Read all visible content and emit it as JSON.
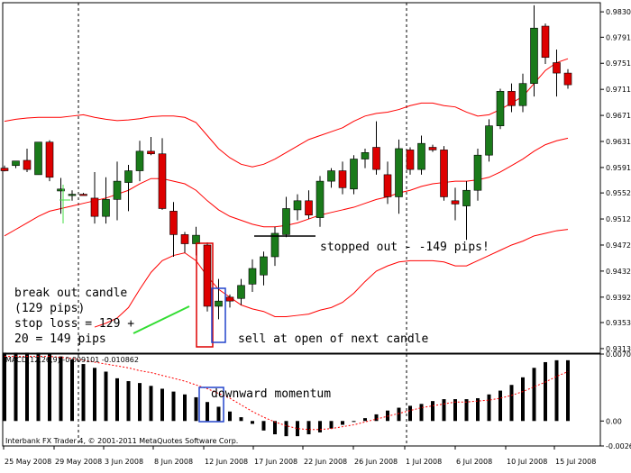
{
  "chart_data": [
    {
      "type": "candlestick",
      "yticks": [
        0.9313,
        0.9353,
        0.9392,
        0.9432,
        0.9472,
        0.9512,
        0.9552,
        0.9591,
        0.9631,
        0.9671,
        0.9711,
        0.9751,
        0.9791,
        0.983
      ],
      "ytick_labels": [
        "0.93130",
        "0.93530",
        "0.93920",
        "0.94320",
        "0.94720",
        "0.95120",
        "0.95520",
        "0.95910",
        "0.96310",
        "0.96710",
        "0.97110",
        "0.97510",
        "0.97910",
        "0.98300"
      ],
      "ylim": [
        0.9306,
        0.9844
      ],
      "candles": [
        {
          "o": 0.959,
          "h": 0.9594,
          "l": 0.9585,
          "c": 0.9586
        },
        {
          "o": 0.9594,
          "h": 0.9601,
          "l": 0.959,
          "c": 0.9601
        },
        {
          "o": 0.9602,
          "h": 0.962,
          "l": 0.9584,
          "c": 0.9588
        },
        {
          "o": 0.958,
          "h": 0.963,
          "l": 0.958,
          "c": 0.963
        },
        {
          "o": 0.963,
          "h": 0.9633,
          "l": 0.957,
          "c": 0.9576
        },
        {
          "o": 0.9555,
          "h": 0.9575,
          "l": 0.952,
          "c": 0.9558
        },
        {
          "o": 0.9549,
          "h": 0.9556,
          "l": 0.954,
          "c": 0.955
        },
        {
          "o": 0.955,
          "h": 0.9552,
          "l": 0.9548,
          "c": 0.9548
        },
        {
          "o": 0.9544,
          "h": 0.9584,
          "l": 0.9505,
          "c": 0.9516
        },
        {
          "o": 0.9516,
          "h": 0.9576,
          "l": 0.9505,
          "c": 0.9542
        },
        {
          "o": 0.9542,
          "h": 0.96,
          "l": 0.951,
          "c": 0.957
        },
        {
          "o": 0.9568,
          "h": 0.9595,
          "l": 0.9524,
          "c": 0.9586
        },
        {
          "o": 0.9586,
          "h": 0.9632,
          "l": 0.957,
          "c": 0.9616
        },
        {
          "o": 0.9616,
          "h": 0.9638,
          "l": 0.961,
          "c": 0.9612
        },
        {
          "o": 0.9612,
          "h": 0.9636,
          "l": 0.9526,
          "c": 0.9528
        },
        {
          "o": 0.9524,
          "h": 0.9538,
          "l": 0.9454,
          "c": 0.9488
        },
        {
          "o": 0.9488,
          "h": 0.9492,
          "l": 0.946,
          "c": 0.9474
        },
        {
          "o": 0.9474,
          "h": 0.95,
          "l": 0.9456,
          "c": 0.9487
        },
        {
          "o": 0.9472,
          "h": 0.9476,
          "l": 0.937,
          "c": 0.9378
        },
        {
          "o": 0.9378,
          "h": 0.942,
          "l": 0.9358,
          "c": 0.9386
        },
        {
          "o": 0.9392,
          "h": 0.9396,
          "l": 0.9376,
          "c": 0.9386
        },
        {
          "o": 0.939,
          "h": 0.942,
          "l": 0.938,
          "c": 0.941
        },
        {
          "o": 0.9412,
          "h": 0.945,
          "l": 0.94,
          "c": 0.9436
        },
        {
          "o": 0.9426,
          "h": 0.9462,
          "l": 0.941,
          "c": 0.9454
        },
        {
          "o": 0.9454,
          "h": 0.95,
          "l": 0.944,
          "c": 0.949
        },
        {
          "o": 0.9488,
          "h": 0.9546,
          "l": 0.9484,
          "c": 0.9528
        },
        {
          "o": 0.9526,
          "h": 0.955,
          "l": 0.951,
          "c": 0.954
        },
        {
          "o": 0.954,
          "h": 0.9556,
          "l": 0.9512,
          "c": 0.9518
        },
        {
          "o": 0.9514,
          "h": 0.9578,
          "l": 0.95,
          "c": 0.957
        },
        {
          "o": 0.957,
          "h": 0.959,
          "l": 0.956,
          "c": 0.9586
        },
        {
          "o": 0.9586,
          "h": 0.96,
          "l": 0.955,
          "c": 0.956
        },
        {
          "o": 0.9558,
          "h": 0.961,
          "l": 0.955,
          "c": 0.9604
        },
        {
          "o": 0.9604,
          "h": 0.962,
          "l": 0.959,
          "c": 0.9614
        },
        {
          "o": 0.9622,
          "h": 0.9662,
          "l": 0.958,
          "c": 0.9588
        },
        {
          "o": 0.958,
          "h": 0.96,
          "l": 0.9535,
          "c": 0.9546
        },
        {
          "o": 0.9546,
          "h": 0.9634,
          "l": 0.952,
          "c": 0.962
        },
        {
          "o": 0.9618,
          "h": 0.9622,
          "l": 0.958,
          "c": 0.9588
        },
        {
          "o": 0.9588,
          "h": 0.964,
          "l": 0.958,
          "c": 0.9628
        },
        {
          "o": 0.9622,
          "h": 0.9626,
          "l": 0.9615,
          "c": 0.9618
        },
        {
          "o": 0.9618,
          "h": 0.9624,
          "l": 0.954,
          "c": 0.9546
        },
        {
          "o": 0.954,
          "h": 0.956,
          "l": 0.951,
          "c": 0.9535
        },
        {
          "o": 0.9532,
          "h": 0.957,
          "l": 0.948,
          "c": 0.9556
        },
        {
          "o": 0.9556,
          "h": 0.962,
          "l": 0.954,
          "c": 0.961
        },
        {
          "o": 0.961,
          "h": 0.9665,
          "l": 0.96,
          "c": 0.9655
        },
        {
          "o": 0.9655,
          "h": 0.9712,
          "l": 0.965,
          "c": 0.9708
        },
        {
          "o": 0.9708,
          "h": 0.972,
          "l": 0.9676,
          "c": 0.9686
        },
        {
          "o": 0.9686,
          "h": 0.9735,
          "l": 0.9676,
          "c": 0.972
        },
        {
          "o": 0.972,
          "h": 0.984,
          "l": 0.97,
          "c": 0.9805
        },
        {
          "o": 0.9808,
          "h": 0.9812,
          "l": 0.975,
          "c": 0.976
        },
        {
          "o": 0.9752,
          "h": 0.9772,
          "l": 0.97,
          "c": 0.9736
        },
        {
          "o": 0.9736,
          "h": 0.9742,
          "l": 0.9712,
          "c": 0.9718
        }
      ],
      "bands_upper": [
        0.9662,
        0.9665,
        0.9667,
        0.9668,
        0.9668,
        0.9668,
        0.967,
        0.9672,
        0.9668,
        0.9665,
        0.9663,
        0.9664,
        0.9666,
        0.9669,
        0.967,
        0.967,
        0.9668,
        0.966,
        0.964,
        0.962,
        0.9606,
        0.9596,
        0.9592,
        0.9596,
        0.9604,
        0.9614,
        0.9624,
        0.9634,
        0.964,
        0.9646,
        0.9652,
        0.9662,
        0.967,
        0.9674,
        0.9676,
        0.968,
        0.9686,
        0.969,
        0.969,
        0.9686,
        0.9684,
        0.9676,
        0.967,
        0.9672,
        0.968,
        0.969,
        0.97,
        0.972,
        0.974,
        0.9752,
        0.9758
      ],
      "bands_middle": [
        0.9486,
        0.9496,
        0.9506,
        0.9516,
        0.9524,
        0.9528,
        0.9532,
        0.9536,
        0.954,
        0.9544,
        0.955,
        0.9556,
        0.9566,
        0.9574,
        0.9574,
        0.957,
        0.9566,
        0.9556,
        0.954,
        0.9526,
        0.9516,
        0.951,
        0.9504,
        0.95,
        0.95,
        0.9502,
        0.9506,
        0.9512,
        0.9518,
        0.9522,
        0.9526,
        0.953,
        0.9536,
        0.9542,
        0.9546,
        0.9552,
        0.9556,
        0.9562,
        0.9566,
        0.9568,
        0.957,
        0.957,
        0.9572,
        0.9576,
        0.9584,
        0.9594,
        0.9604,
        0.9616,
        0.9626,
        0.9632,
        0.9636
      ],
      "bands_lower": [
        null,
        null,
        null,
        null,
        null,
        null,
        null,
        null,
        0.9346,
        0.9352,
        0.936,
        0.9376,
        0.9404,
        0.943,
        0.9448,
        0.9456,
        0.946,
        0.9448,
        0.9424,
        0.9404,
        0.9392,
        0.938,
        0.9374,
        0.937,
        0.9362,
        0.9362,
        0.9364,
        0.9366,
        0.9372,
        0.9376,
        0.9384,
        0.9398,
        0.9416,
        0.9432,
        0.944,
        0.9446,
        0.9448,
        0.9448,
        0.9448,
        0.9446,
        0.944,
        0.944,
        0.9448,
        0.9456,
        0.9464,
        0.9472,
        0.9478,
        0.9486,
        0.949,
        0.9494,
        0.9496
      ],
      "annotations": {
        "breakout_title": "break out candle",
        "breakout_pips": "(129 pips)",
        "stoploss_1": "stop loss = 129 +",
        "stoploss_2": "20 = 149 pips",
        "sell": "sell at open of next candle",
        "stopped": "stopped out - -149 pips!"
      },
      "colors": {
        "up": "#1a7a1a",
        "down": "#dd0000",
        "bands": "#ff0000",
        "grid": "#000000"
      }
    },
    {
      "type": "bar",
      "title": "MACD(12,26,9) -0.009101 -0.010862",
      "ylim": [
        -0.00263,
        0.00705
      ],
      "yticks": [
        0.00705,
        0.0,
        -0.00263
      ],
      "ytick_labels": [
        "0.00705",
        "0.00",
        "-0.00263"
      ],
      "values": [
        0.0072,
        0.0072,
        0.0072,
        0.0072,
        0.0071,
        0.0068,
        0.0065,
        0.006,
        0.0056,
        0.0052,
        0.0045,
        0.0042,
        0.004,
        0.0037,
        0.0034,
        0.0031,
        0.0028,
        0.0025,
        0.002,
        0.0015,
        0.001,
        0.0004,
        -0.0003,
        -0.001,
        -0.0014,
        -0.0016,
        -0.0016,
        -0.0014,
        -0.0012,
        -0.0008,
        -0.0004,
        -0.0001,
        0.0003,
        0.0007,
        0.0011,
        0.0014,
        0.0016,
        0.0018,
        0.0021,
        0.0023,
        0.0023,
        0.0023,
        0.0024,
        0.0028,
        0.0032,
        0.0038,
        0.0046,
        0.0056,
        0.0062,
        0.0064,
        0.0064
      ],
      "signal": [
        0.0068,
        0.0068,
        0.0068,
        0.0068,
        0.0068,
        0.0067,
        0.0066,
        0.0064,
        0.0062,
        0.006,
        0.0058,
        0.0056,
        0.0053,
        0.0051,
        0.0048,
        0.0045,
        0.0042,
        0.0038,
        0.0034,
        0.0029,
        0.0024,
        0.0017,
        0.001,
        0.0004,
        -0.0001,
        -0.0005,
        -0.0008,
        -0.0009,
        -0.0009,
        -0.0008,
        -0.0006,
        -0.0004,
        -0.0001,
        0.0002,
        0.0005,
        0.0008,
        0.0011,
        0.0014,
        0.0016,
        0.0018,
        0.002,
        0.002,
        0.0021,
        0.0022,
        0.0024,
        0.0027,
        0.0031,
        0.0036,
        0.0041,
        0.0047,
        0.0052
      ],
      "annotation": "downward momentum"
    }
  ],
  "footer": "Interbank FX Trader 4, © 2001-2011 MetaQuotes Software Corp.",
  "dates": [
    "29 May 2008",
    "29 May 2008",
    "3 Jun 2008",
    "8 Jun 2008",
    "12 Jun 2008",
    "17 Jun 2008",
    "22 Jun 2008",
    "26 Jun 2008",
    "1 Jul 2008",
    "6 Jul 2008",
    "10 Jul 2008",
    "15 Jul 2008"
  ],
  "date_first": "25 May 2008"
}
